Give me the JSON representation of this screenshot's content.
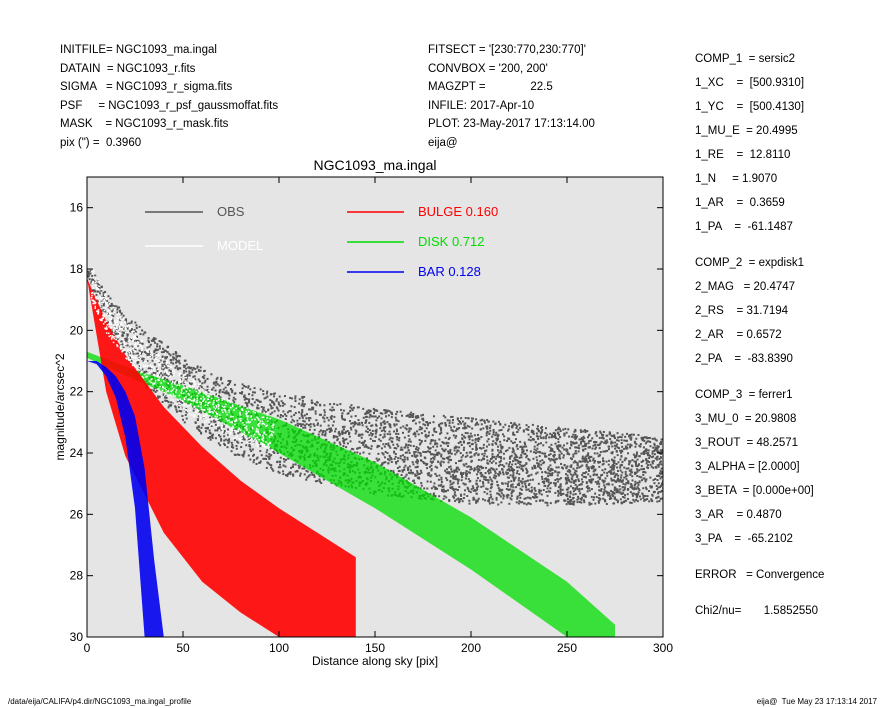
{
  "header_left": [
    "INITFILE= NGC1093_ma.ingal",
    "DATAIN  = NGC1093_r.fits",
    "SIGMA   = NGC1093_r_sigma.fits",
    "PSF     = NGC1093_r_psf_gaussmoffat.fits",
    "MASK    = NGC1093_r_mask.fits",
    "pix (\") =  0.3960"
  ],
  "header_mid": [
    "FITSECT = '[230:770,230:770]'",
    "CONVBOX = '200, 200'",
    "MAGZPT =              22.5",
    "INFILE: 2017-Apr-10",
    "PLOT: 23-May-2017 17:13:14.00",
    "eija@"
  ],
  "params": [
    "COMP_1  = sersic2",
    "1_XC    =  [500.9310]",
    "1_YC    =  [500.4130]",
    "1_MU_E  = 20.4995",
    "1_RE    =  12.8110",
    "1_N     = 1.9070",
    "1_AR    =  0.3659",
    "1_PA    =  -61.1487",
    "",
    "COMP_2  = expdisk1",
    "2_MAG   = 20.4747",
    "2_RS    = 31.7194",
    "2_AR    = 0.6572",
    "2_PA    =  -83.8390",
    "",
    "COMP_3  = ferrer1",
    "3_MU_0  = 20.9808",
    "3_ROUT  = 48.2571",
    "3_ALPHA = [2.0000]",
    "3_BETA  = [0.000e+00]",
    "3_AR    = 0.4870",
    "3_PA    =  -65.2102",
    "",
    "ERROR   = Convergence",
    "",
    "Chi2/nu=       1.5852550"
  ],
  "footer_left": "/data/eija/CALIFA/p4.dir/NGC1093_ma.ingal_profile",
  "footer_right": "eija@  Tue May 23 17:13:14 2017",
  "colors": {
    "obs": "#555555",
    "model": "#ffffff",
    "bulge": "#ff0000",
    "disk": "#00dd00",
    "bar": "#0000ee",
    "plot_bg": "#e5e5e5"
  },
  "chart_data": {
    "type": "scatter",
    "title": "NGC1093_ma.ingal",
    "xlabel": "Distance along sky [pix]",
    "ylabel": "magnitude/arcsec^2",
    "xlim": [
      0,
      300
    ],
    "ylim": [
      30,
      15
    ],
    "y_inverted": true,
    "xticks": [
      0,
      50,
      100,
      150,
      200,
      250,
      300
    ],
    "yticks": [
      16,
      18,
      20,
      22,
      24,
      26,
      28,
      30
    ],
    "grid": false,
    "legend": [
      {
        "name": "OBS",
        "value": ""
      },
      {
        "name": "MODEL",
        "value": ""
      },
      {
        "name": "BULGE",
        "value": "0.160"
      },
      {
        "name": "DISK",
        "value": "0.712"
      },
      {
        "name": "BAR",
        "value": "0.128"
      }
    ],
    "series": [
      {
        "name": "OBS",
        "x": [
          0,
          10,
          20,
          30,
          50,
          75,
          100,
          150,
          200,
          250,
          300
        ],
        "y_center": [
          18.0,
          19.3,
          20.1,
          20.8,
          21.8,
          22.7,
          23.2,
          23.8,
          24.1,
          24.3,
          24.4
        ],
        "y_spread": [
          0.3,
          0.8,
          1.0,
          1.3,
          1.5,
          1.7,
          1.9,
          2.0,
          2.0,
          1.8,
          1.5
        ]
      },
      {
        "name": "BULGE",
        "x": [
          0,
          10,
          20,
          40,
          60,
          80,
          100,
          120,
          140
        ],
        "y_top": [
          18.3,
          19.7,
          20.8,
          22.5,
          23.8,
          24.9,
          25.8,
          26.6,
          27.4
        ],
        "y_bottom": [
          18.3,
          22.0,
          24.1,
          26.6,
          28.2,
          29.2,
          30.0,
          30.0,
          30.0
        ]
      },
      {
        "name": "DISK",
        "x": [
          0,
          25,
          50,
          100,
          150,
          200,
          250,
          275
        ],
        "y_top": [
          20.7,
          21.3,
          21.8,
          22.9,
          24.3,
          26.1,
          28.2,
          29.6
        ],
        "y_bottom": [
          20.9,
          21.6,
          22.3,
          24.0,
          25.8,
          27.8,
          30.0,
          30.0
        ]
      },
      {
        "name": "BAR",
        "x": [
          0,
          5,
          10,
          15,
          20,
          25,
          30,
          35,
          40,
          45,
          50
        ],
        "y_top": [
          21.0,
          21.0,
          21.2,
          21.5,
          22.0,
          22.8,
          24.5,
          27.5,
          30.0,
          30.0,
          30.0
        ],
        "y_bottom": [
          21.0,
          21.1,
          21.5,
          22.2,
          23.5,
          25.8,
          30.0,
          30.0,
          30.0,
          30.0,
          30.0
        ]
      }
    ]
  }
}
